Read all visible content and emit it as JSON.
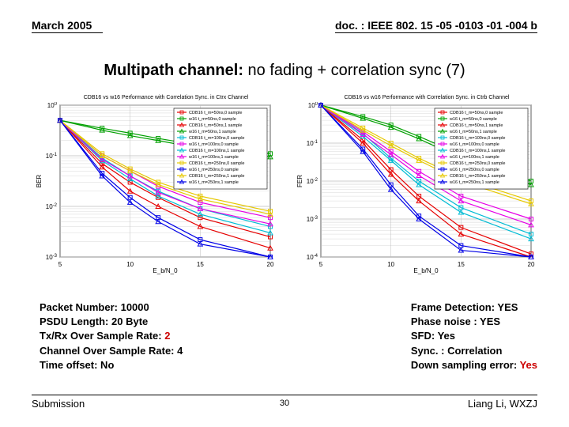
{
  "header": {
    "date": "March 2005",
    "doc_id": "doc. : IEEE 802. 15 -05 -0103 -01 -004 b"
  },
  "title": {
    "bold": "Multipath channel:",
    "plain": " no fading + correlation sync (7)"
  },
  "charts": [
    {
      "title": "CDB16 vs w16 Performance with Correlation Sync. in Ctrx Channel",
      "ylabel": "BER",
      "xlabel": "E_b/N_0",
      "xlim": [
        5,
        20
      ],
      "ylim_exp": [
        -3,
        0
      ],
      "xtick_step": 5,
      "yticks_exp": [
        -3,
        -2,
        -1,
        0
      ],
      "bg": "#ffffff",
      "grid": "#bdbdbd",
      "axis": "#000000",
      "legend_box": {
        "bg": "#ffffff",
        "border": "#000000"
      },
      "legend": [
        {
          "label": "CDB16 t_m=50ns,0 sample",
          "color": "#e60000",
          "marker": "square"
        },
        {
          "label": "w16 t_m=50ns,0 sample",
          "color": "#00a000",
          "marker": "square"
        },
        {
          "label": "CDB16 t_m=50ns,1 sample",
          "color": "#e60000",
          "marker": "triangle"
        },
        {
          "label": "w16 t_m=50ns,1 sample",
          "color": "#00a000",
          "marker": "triangle"
        },
        {
          "label": "CDB16 t_m=100ns,0 sample",
          "color": "#00bcd4",
          "marker": "square"
        },
        {
          "label": "w16 t_m=100ns,0 sample",
          "color": "#e600e6",
          "marker": "square"
        },
        {
          "label": "CDB16 t_m=100ns,1 sample",
          "color": "#00bcd4",
          "marker": "triangle"
        },
        {
          "label": "w16 t_m=100ns,1 sample",
          "color": "#e600e6",
          "marker": "triangle"
        },
        {
          "label": "CDB16 t_m=250ns,0 sample",
          "color": "#e6c800",
          "marker": "square"
        },
        {
          "label": "w16 t_m=250ns,0 sample",
          "color": "#0000e6",
          "marker": "square"
        },
        {
          "label": "CDB16 t_m=250ns,1 sample",
          "color": "#e6c800",
          "marker": "triangle"
        },
        {
          "label": "w16 t_m=250ns,1 sample",
          "color": "#0000e6",
          "marker": "triangle"
        }
      ],
      "series": [
        {
          "color": "#e60000",
          "marker": "square",
          "x": [
            5,
            8,
            10,
            12,
            15,
            20
          ],
          "y": [
            0.5,
            0.07,
            0.03,
            0.015,
            0.006,
            0.0025
          ]
        },
        {
          "color": "#00a000",
          "marker": "square",
          "x": [
            5,
            8,
            10,
            12,
            15,
            20
          ],
          "y": [
            0.5,
            0.35,
            0.28,
            0.22,
            0.16,
            0.11
          ]
        },
        {
          "color": "#e60000",
          "marker": "triangle",
          "x": [
            5,
            8,
            10,
            12,
            15,
            20
          ],
          "y": [
            0.5,
            0.06,
            0.02,
            0.01,
            0.004,
            0.0015
          ]
        },
        {
          "color": "#00a000",
          "marker": "triangle",
          "x": [
            5,
            8,
            10,
            12,
            15,
            20
          ],
          "y": [
            0.5,
            0.32,
            0.25,
            0.2,
            0.14,
            0.095
          ]
        },
        {
          "color": "#00bcd4",
          "marker": "square",
          "x": [
            5,
            8,
            10,
            12,
            15,
            20
          ],
          "y": [
            0.5,
            0.09,
            0.04,
            0.02,
            0.009,
            0.004
          ]
        },
        {
          "color": "#e600e6",
          "marker": "square",
          "x": [
            5,
            8,
            10,
            12,
            15,
            20
          ],
          "y": [
            0.5,
            0.1,
            0.05,
            0.025,
            0.012,
            0.006
          ]
        },
        {
          "color": "#00bcd4",
          "marker": "triangle",
          "x": [
            5,
            8,
            10,
            12,
            15,
            20
          ],
          "y": [
            0.5,
            0.08,
            0.035,
            0.016,
            0.007,
            0.003
          ]
        },
        {
          "color": "#e600e6",
          "marker": "triangle",
          "x": [
            5,
            8,
            10,
            12,
            15,
            20
          ],
          "y": [
            0.5,
            0.085,
            0.04,
            0.019,
            0.009,
            0.0045
          ]
        },
        {
          "color": "#e6c800",
          "marker": "square",
          "x": [
            5,
            8,
            10,
            12,
            15,
            20
          ],
          "y": [
            0.5,
            0.11,
            0.055,
            0.03,
            0.016,
            0.008
          ]
        },
        {
          "color": "#0000e6",
          "marker": "square",
          "x": [
            5,
            8,
            10,
            12,
            15,
            20
          ],
          "y": [
            0.5,
            0.045,
            0.015,
            0.006,
            0.0022,
            0.001
          ]
        },
        {
          "color": "#e6c800",
          "marker": "triangle",
          "x": [
            5,
            8,
            10,
            12,
            15,
            20
          ],
          "y": [
            0.5,
            0.1,
            0.05,
            0.027,
            0.014,
            0.007
          ]
        },
        {
          "color": "#0000e6",
          "marker": "triangle",
          "x": [
            5,
            8,
            10,
            12,
            15,
            20
          ],
          "y": [
            0.5,
            0.04,
            0.012,
            0.005,
            0.0018,
            0.001
          ]
        }
      ]
    },
    {
      "title": "CDB16 vs w16 Performance with Correlation Sync. in Ctrb Channel",
      "ylabel": "FER",
      "xlabel": "E_b/N_0",
      "xlim": [
        5,
        20
      ],
      "ylim_exp": [
        -4,
        0
      ],
      "xtick_step": 5,
      "yticks_exp": [
        -4,
        -3,
        -2,
        -1,
        0
      ],
      "bg": "#ffffff",
      "grid": "#bdbdbd",
      "axis": "#000000",
      "legend_box": {
        "bg": "#ffffff",
        "border": "#000000"
      },
      "legend": [
        {
          "label": "CDB16 t_m=50ns,0 sample",
          "color": "#e60000",
          "marker": "square"
        },
        {
          "label": "w16 t_m=50ns,0 sample",
          "color": "#00a000",
          "marker": "square"
        },
        {
          "label": "CDB16 t_m=50ns,1 sample",
          "color": "#e60000",
          "marker": "triangle"
        },
        {
          "label": "w16 t_m=50ns,1 sample",
          "color": "#00a000",
          "marker": "triangle"
        },
        {
          "label": "CDB16 t_m=100ns,0 sample",
          "color": "#00bcd4",
          "marker": "square"
        },
        {
          "label": "w16 t_m=100ns,0 sample",
          "color": "#e600e6",
          "marker": "square"
        },
        {
          "label": "CDB16 t_m=100ns,1 sample",
          "color": "#00bcd4",
          "marker": "triangle"
        },
        {
          "label": "w16 t_m=100ns,1 sample",
          "color": "#e600e6",
          "marker": "triangle"
        },
        {
          "label": "CDB16 t_m=250ns,0 sample",
          "color": "#e6c800",
          "marker": "square"
        },
        {
          "label": "w16 t_m=250ns,0 sample",
          "color": "#0000e6",
          "marker": "square"
        },
        {
          "label": "CDB16 t_m=250ns,1 sample",
          "color": "#e6c800",
          "marker": "triangle"
        },
        {
          "label": "w16 t_m=250ns,1 sample",
          "color": "#0000e6",
          "marker": "triangle"
        }
      ],
      "series": [
        {
          "color": "#e60000",
          "marker": "square",
          "x": [
            5,
            8,
            10,
            12,
            15,
            20
          ],
          "y": [
            1,
            0.12,
            0.02,
            0.004,
            0.0006,
            0.00012
          ]
        },
        {
          "color": "#00a000",
          "marker": "square",
          "x": [
            5,
            8,
            10,
            12,
            15,
            20
          ],
          "y": [
            1,
            0.5,
            0.3,
            0.15,
            0.05,
            0.01
          ]
        },
        {
          "color": "#e60000",
          "marker": "triangle",
          "x": [
            5,
            8,
            10,
            12,
            15,
            20
          ],
          "y": [
            1,
            0.1,
            0.015,
            0.003,
            0.0004,
            0.0001
          ]
        },
        {
          "color": "#00a000",
          "marker": "triangle",
          "x": [
            5,
            8,
            10,
            12,
            15,
            20
          ],
          "y": [
            1,
            0.45,
            0.26,
            0.13,
            0.04,
            0.008
          ]
        },
        {
          "color": "#00bcd4",
          "marker": "square",
          "x": [
            5,
            8,
            10,
            12,
            15,
            20
          ],
          "y": [
            1,
            0.18,
            0.04,
            0.01,
            0.002,
            0.0004
          ]
        },
        {
          "color": "#e600e6",
          "marker": "square",
          "x": [
            5,
            8,
            10,
            12,
            15,
            20
          ],
          "y": [
            1,
            0.2,
            0.06,
            0.018,
            0.004,
            0.001
          ]
        },
        {
          "color": "#00bcd4",
          "marker": "triangle",
          "x": [
            5,
            8,
            10,
            12,
            15,
            20
          ],
          "y": [
            1,
            0.15,
            0.035,
            0.008,
            0.0015,
            0.0003
          ]
        },
        {
          "color": "#e600e6",
          "marker": "triangle",
          "x": [
            5,
            8,
            10,
            12,
            15,
            20
          ],
          "y": [
            1,
            0.17,
            0.05,
            0.014,
            0.003,
            0.0007
          ]
        },
        {
          "color": "#e6c800",
          "marker": "square",
          "x": [
            5,
            8,
            10,
            12,
            15,
            20
          ],
          "y": [
            1,
            0.25,
            0.1,
            0.04,
            0.012,
            0.003
          ]
        },
        {
          "color": "#0000e6",
          "marker": "square",
          "x": [
            5,
            8,
            10,
            12,
            15,
            20
          ],
          "y": [
            1,
            0.07,
            0.008,
            0.0012,
            0.0002,
            0.0001
          ]
        },
        {
          "color": "#e6c800",
          "marker": "triangle",
          "x": [
            5,
            8,
            10,
            12,
            15,
            20
          ],
          "y": [
            1,
            0.22,
            0.085,
            0.035,
            0.01,
            0.0025
          ]
        },
        {
          "color": "#0000e6",
          "marker": "triangle",
          "x": [
            5,
            8,
            10,
            12,
            15,
            20
          ],
          "y": [
            1,
            0.06,
            0.006,
            0.001,
            0.00015,
            0.0001
          ]
        }
      ]
    }
  ],
  "params_left": [
    {
      "label": "Packet Number: ",
      "value": "10000",
      "red": false
    },
    {
      "label": "PSDU Length: ",
      "value": "20 Byte",
      "red": false
    },
    {
      "label": "Tx/Rx Over Sample Rate: ",
      "value": "2",
      "red": true
    },
    {
      "label": "Channel Over Sample Rate: ",
      "value": "4",
      "red": false
    },
    {
      "label": "Time offset:",
      "value": " No",
      "red": false
    }
  ],
  "params_right": [
    {
      "label": "Frame Detection: ",
      "value": "YES",
      "red": false
    },
    {
      "label": "Phase noise : ",
      "value": "YES",
      "red": false
    },
    {
      "label": "SFD: ",
      "value": "Yes",
      "red": false
    },
    {
      "label": "Sync. : ",
      "value": "Correlation",
      "red": false
    },
    {
      "label": "Down sampling error: ",
      "value": "Yes",
      "red": true
    }
  ],
  "footer": {
    "left": "Submission",
    "page": "30",
    "right": "Liang Li, WXZJ"
  }
}
